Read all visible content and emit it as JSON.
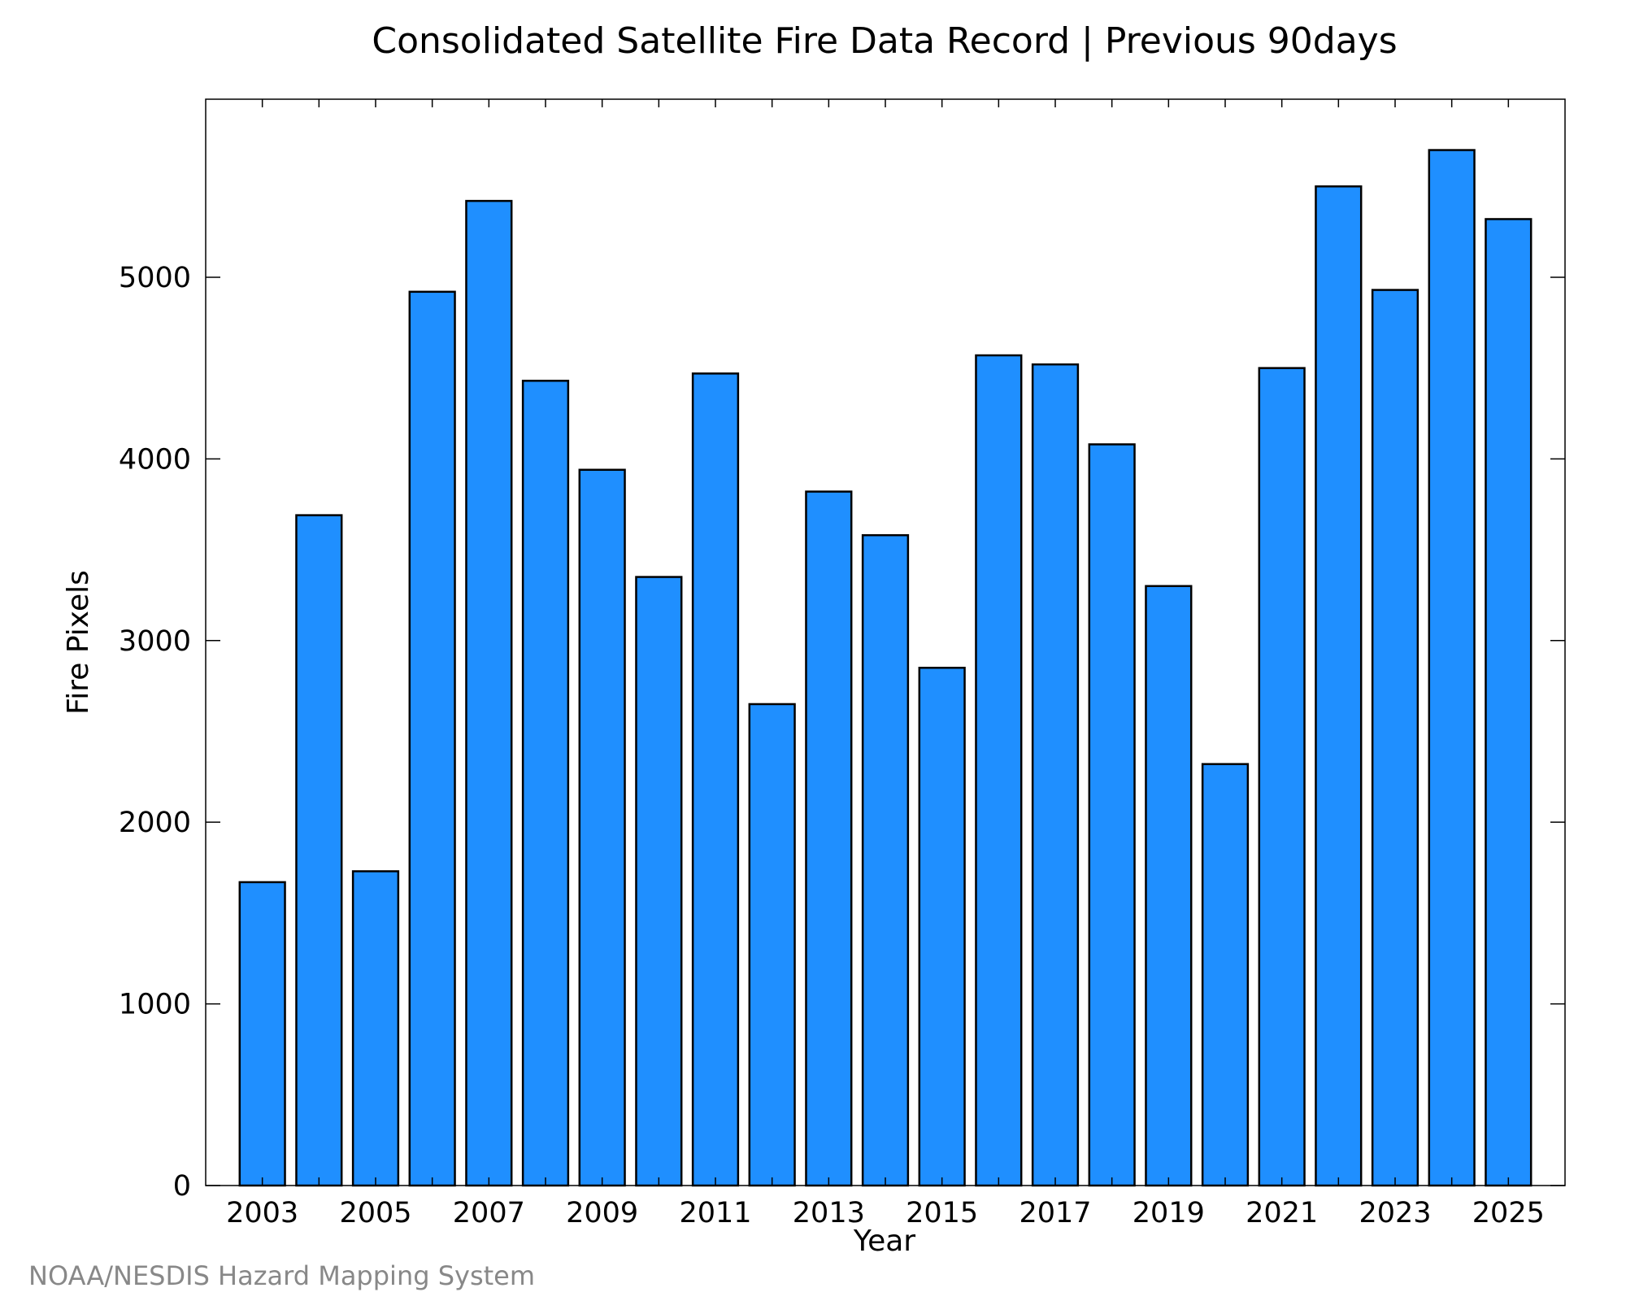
{
  "chart_data": {
    "type": "bar",
    "title": "Consolidated Satellite Fire Data Record | Previous 90days",
    "xlabel": "Year",
    "ylabel": "Fire Pixels",
    "categories": [
      2003,
      2004,
      2005,
      2006,
      2007,
      2008,
      2009,
      2010,
      2011,
      2012,
      2013,
      2014,
      2015,
      2016,
      2017,
      2018,
      2019,
      2020,
      2021,
      2022,
      2023,
      2024,
      2025
    ],
    "values": [
      1670,
      3690,
      1730,
      4920,
      5420,
      4430,
      3940,
      3350,
      4470,
      2650,
      3820,
      3580,
      2850,
      4570,
      4520,
      4080,
      3300,
      2320,
      4500,
      5500,
      4930,
      5700,
      5320
    ],
    "x_ticks": [
      "2003",
      "2005",
      "2007",
      "2009",
      "2011",
      "2013",
      "2015",
      "2017",
      "2019",
      "2021",
      "2023",
      "2025"
    ],
    "y_ticks": [
      0,
      1000,
      2000,
      3000,
      4000,
      5000
    ],
    "ylim": [
      0,
      5980
    ],
    "xlim": [
      2002.0,
      2026.0
    ],
    "grid": false,
    "bar_color": "#1f8fff",
    "edge_color": "#000000"
  },
  "footer": {
    "credit": "NOAA/NESDIS Hazard Mapping System"
  }
}
